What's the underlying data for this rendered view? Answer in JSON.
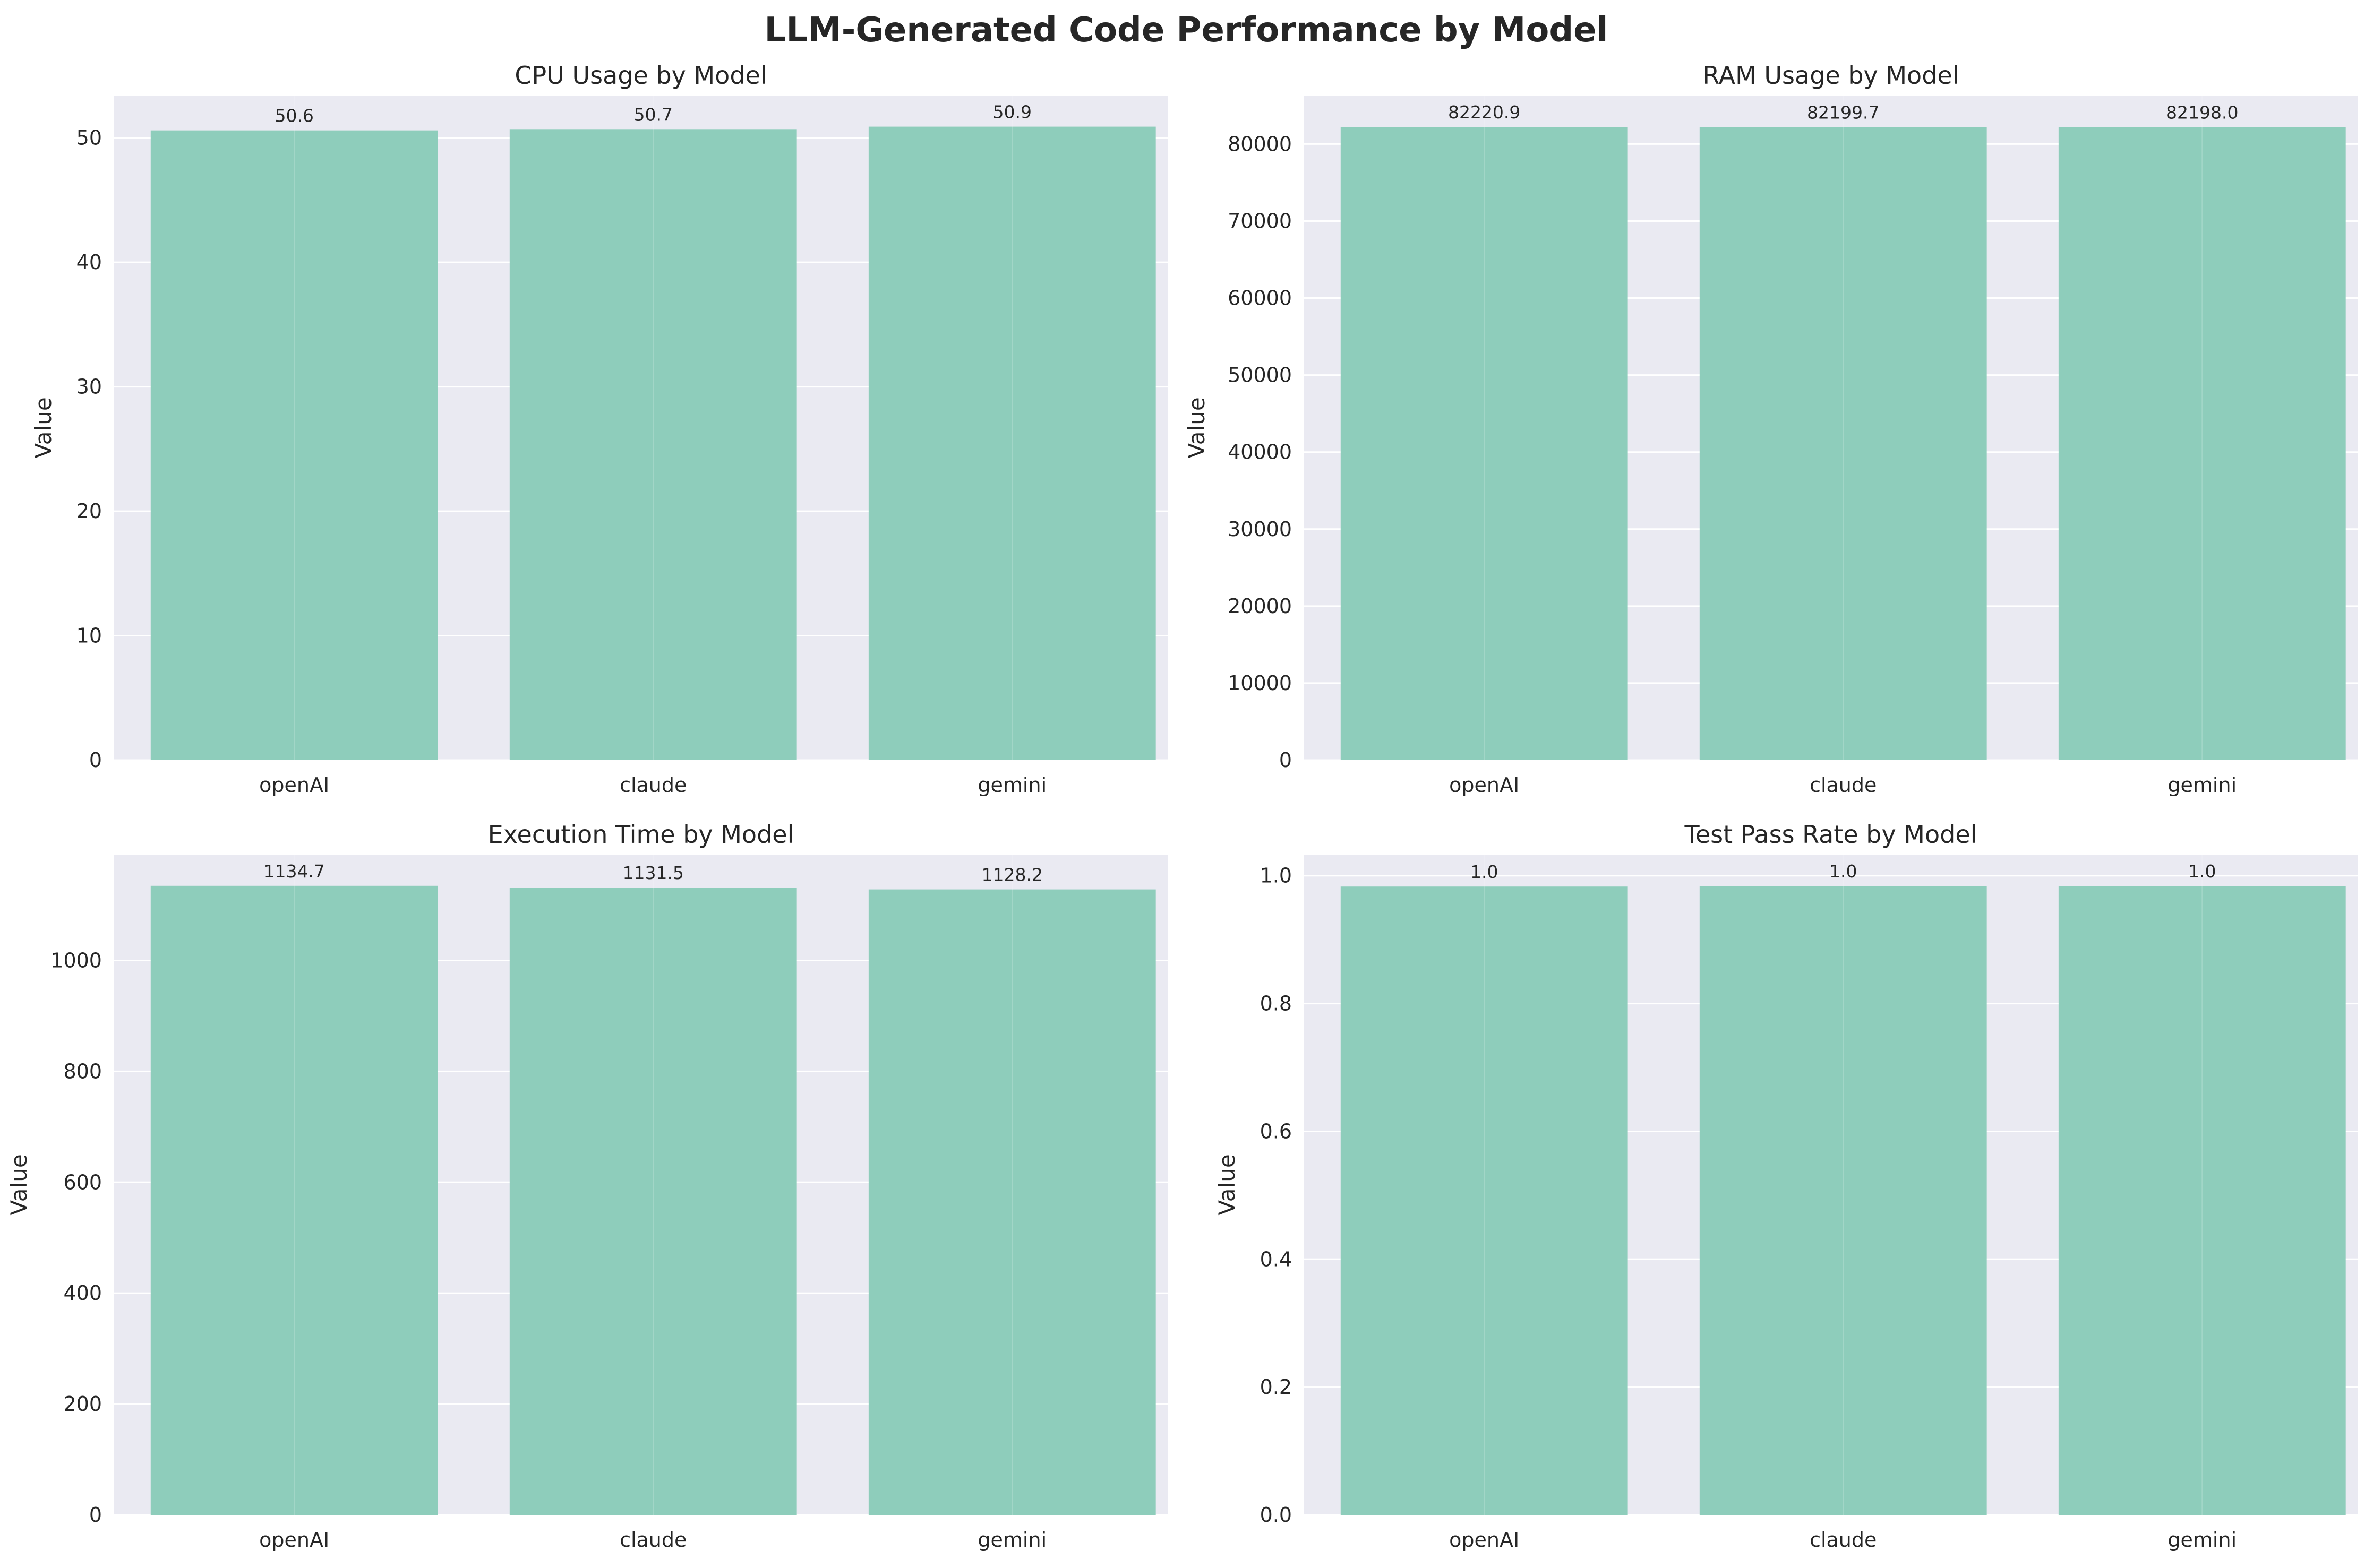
{
  "figure_title": "LLM-Generated Code Performance by Model",
  "colors": {
    "bar": "#8ecdbb",
    "panel_bg": "#eaeaf2",
    "grid": "#ffffff",
    "text": "#262626"
  },
  "chart_data": [
    {
      "type": "bar",
      "title": "CPU Usage by Model",
      "xlabel": "",
      "ylabel": "Value",
      "categories": [
        "openAI",
        "claude",
        "gemini"
      ],
      "values": [
        50.6,
        50.7,
        50.9
      ],
      "data_labels": [
        "50.6",
        "50.7",
        "50.9"
      ],
      "ylim": [
        0,
        53.4
      ],
      "yticks": [
        0,
        10,
        20,
        30,
        40,
        50
      ],
      "ytick_labels": [
        "0",
        "10",
        "20",
        "30",
        "40",
        "50"
      ],
      "grid": true
    },
    {
      "type": "bar",
      "title": "RAM Usage by Model",
      "xlabel": "",
      "ylabel": "Value",
      "categories": [
        "openAI",
        "claude",
        "gemini"
      ],
      "values": [
        82220.9,
        82199.7,
        82198.0
      ],
      "data_labels": [
        "82220.9",
        "82199.7",
        "82198.0"
      ],
      "ylim": [
        0,
        86300
      ],
      "yticks": [
        0,
        10000,
        20000,
        30000,
        40000,
        50000,
        60000,
        70000,
        80000
      ],
      "ytick_labels": [
        "0",
        "10000",
        "20000",
        "30000",
        "40000",
        "50000",
        "60000",
        "70000",
        "80000"
      ],
      "grid": true
    },
    {
      "type": "bar",
      "title": "Execution Time by Model",
      "xlabel": "",
      "ylabel": "Value",
      "categories": [
        "openAI",
        "claude",
        "gemini"
      ],
      "values": [
        1134.7,
        1131.5,
        1128.2
      ],
      "data_labels": [
        "1134.7",
        "1131.5",
        "1128.2"
      ],
      "ylim": [
        0,
        1191
      ],
      "yticks": [
        0,
        200,
        400,
        600,
        800,
        1000
      ],
      "ytick_labels": [
        "0",
        "200",
        "400",
        "600",
        "800",
        "1000"
      ],
      "grid": true
    },
    {
      "type": "bar",
      "title": "Test Pass Rate by Model",
      "xlabel": "",
      "ylabel": "Value",
      "categories": [
        "openAI",
        "claude",
        "gemini"
      ],
      "values": [
        0.983,
        0.984,
        0.984
      ],
      "data_labels": [
        "1.0",
        "1.0",
        "1.0"
      ],
      "ylim": [
        0,
        1.033
      ],
      "yticks": [
        0,
        0.2,
        0.4,
        0.6,
        0.8,
        1.0
      ],
      "ytick_labels": [
        "0.0",
        "0.2",
        "0.4",
        "0.6",
        "0.8",
        "1.0"
      ],
      "grid": true
    }
  ]
}
